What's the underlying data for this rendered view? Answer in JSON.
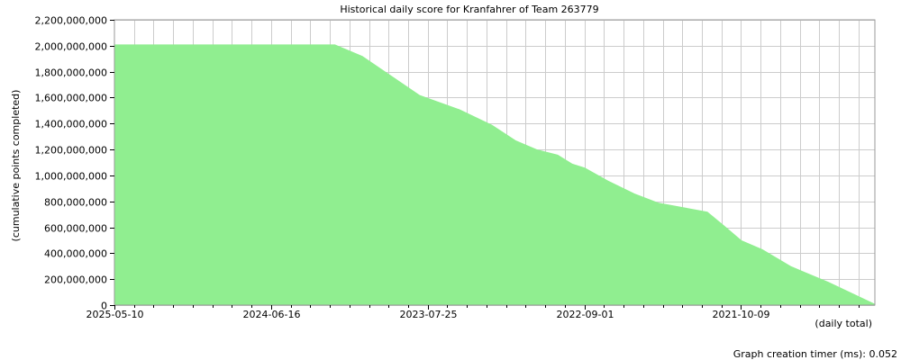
{
  "chart_data": {
    "type": "area",
    "title": "Historical daily score for Kranfahrer of Team 263779",
    "ylabel": "(cumulative points completed)",
    "xlabel": "(daily total)",
    "x_direction": "descending",
    "ylim": [
      0,
      2200000000
    ],
    "grid": true,
    "fill_color": "#90ee90",
    "ytick_values": [
      0,
      200000000,
      400000000,
      600000000,
      800000000,
      1000000000,
      1200000000,
      1400000000,
      1600000000,
      1800000000,
      2000000000,
      2200000000
    ],
    "ytick_labels": [
      "0",
      "200,000,000",
      "400,000,000",
      "600,000,000",
      "800,000,000",
      "1,000,000,000",
      "1,200,000,000",
      "1,400,000,000",
      "1,600,000,000",
      "1,800,000,000",
      "2,000,000,000",
      "2,200,000,000"
    ],
    "xtick_labels": [
      "2025-05-10",
      "2024-06-16",
      "2023-07-25",
      "2022-09-01",
      "2021-10-09"
    ],
    "x_start": "2025-05-10",
    "x_end": "2020-11-21",
    "series": [
      {
        "x": [
          "2025-05-10",
          "2024-12-01",
          "2024-06-16",
          "2024-01-23",
          "2023-11-25",
          "2023-07-25",
          "2023-05-01",
          "2023-02-20",
          "2022-12-31",
          "2022-11-15",
          "2022-10-02",
          "2022-09-01",
          "2022-08-05",
          "2022-06-16",
          "2022-04-20",
          "2022-02-28",
          "2021-11-15",
          "2021-10-09",
          "2021-09-03",
          "2021-07-20",
          "2021-05-20",
          "2021-03-01",
          "2020-11-21"
        ],
        "values": [
          2010000000,
          2010000000,
          2010000000,
          2010000000,
          1920000000,
          1620000000,
          1510000000,
          1390000000,
          1270000000,
          1200000000,
          1160000000,
          1090000000,
          1060000000,
          960000000,
          860000000,
          790000000,
          720000000,
          610000000,
          500000000,
          430000000,
          300000000,
          180000000,
          10000000
        ]
      }
    ]
  },
  "footer": {
    "timer_text": "Graph creation timer (ms): 0.052"
  }
}
